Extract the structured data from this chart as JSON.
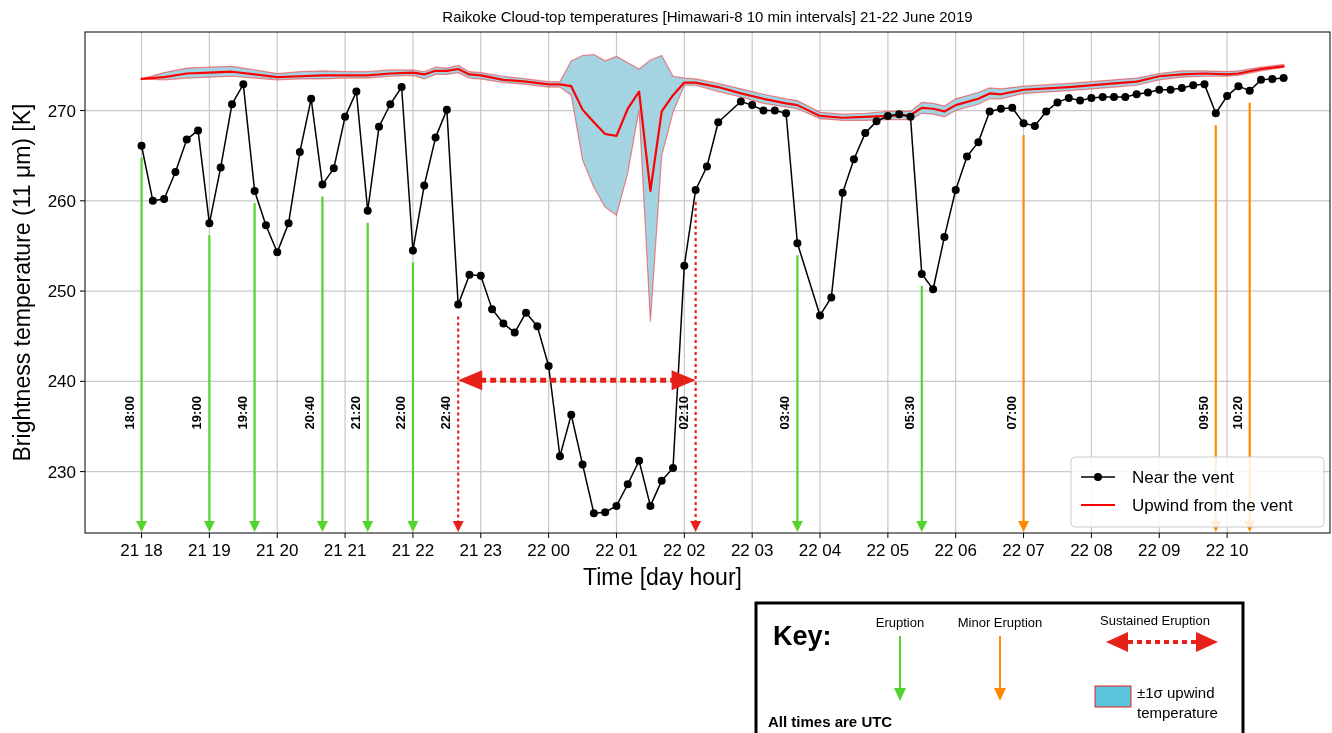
{
  "chart_data": {
    "type": "line",
    "title": "Raikoke Cloud-top temperatures [Himawari-8 10 min intervals] 21-22 June 2019",
    "xlabel": "Time [day hour]",
    "ylabel": "Brightness temperature (11 μm) [K]",
    "xlim": [
      "2019-06-21T17:10",
      "2019-06-22T11:31"
    ],
    "ylim": [
      223.2,
      278.7
    ],
    "xticks": [
      {
        "value": "2019-06-21T18:00",
        "label": "21 18"
      },
      {
        "value": "2019-06-21T19:00",
        "label": "21 19"
      },
      {
        "value": "2019-06-21T20:00",
        "label": "21 20"
      },
      {
        "value": "2019-06-21T21:00",
        "label": "21 21"
      },
      {
        "value": "2019-06-21T22:00",
        "label": "21 22"
      },
      {
        "value": "2019-06-21T23:00",
        "label": "21 23"
      },
      {
        "value": "2019-06-22T00:00",
        "label": "22 00"
      },
      {
        "value": "2019-06-22T01:00",
        "label": "22 01"
      },
      {
        "value": "2019-06-22T02:00",
        "label": "22 02"
      },
      {
        "value": "2019-06-22T03:00",
        "label": "22 03"
      },
      {
        "value": "2019-06-22T04:00",
        "label": "22 04"
      },
      {
        "value": "2019-06-22T05:00",
        "label": "22 05"
      },
      {
        "value": "2019-06-22T06:00",
        "label": "22 06"
      },
      {
        "value": "2019-06-22T07:00",
        "label": "22 07"
      },
      {
        "value": "2019-06-22T08:00",
        "label": "22 08"
      },
      {
        "value": "2019-06-22T09:00",
        "label": "22 09"
      },
      {
        "value": "2019-06-22T10:00",
        "label": "22 10"
      }
    ],
    "yticks": [
      230,
      240,
      250,
      260,
      270
    ],
    "grid": true,
    "legend": "bottom right",
    "line_style": "solid",
    "series": [
      {
        "name": "Near the vent",
        "color": "#000000",
        "marker": "circle",
        "x": [
          "2019-06-21T18:00",
          "2019-06-21T18:10",
          "2019-06-21T18:20",
          "2019-06-21T18:30",
          "2019-06-21T18:40",
          "2019-06-21T18:50",
          "2019-06-21T19:00",
          "2019-06-21T19:10",
          "2019-06-21T19:20",
          "2019-06-21T19:30",
          "2019-06-21T19:40",
          "2019-06-21T19:50",
          "2019-06-21T20:00",
          "2019-06-21T20:10",
          "2019-06-21T20:20",
          "2019-06-21T20:30",
          "2019-06-21T20:40",
          "2019-06-21T20:50",
          "2019-06-21T21:00",
          "2019-06-21T21:10",
          "2019-06-21T21:20",
          "2019-06-21T21:30",
          "2019-06-21T21:40",
          "2019-06-21T21:50",
          "2019-06-21T22:00",
          "2019-06-21T22:10",
          "2019-06-21T22:20",
          "2019-06-21T22:30",
          "2019-06-21T22:40",
          "2019-06-21T22:50",
          "2019-06-21T23:00",
          "2019-06-21T23:10",
          "2019-06-21T23:20",
          "2019-06-21T23:30",
          "2019-06-21T23:40",
          "2019-06-21T23:50",
          "2019-06-22T00:00",
          "2019-06-22T00:10",
          "2019-06-22T00:20",
          "2019-06-22T00:30",
          "2019-06-22T00:40",
          "2019-06-22T00:50",
          "2019-06-22T01:00",
          "2019-06-22T01:10",
          "2019-06-22T01:20",
          "2019-06-22T01:30",
          "2019-06-22T01:40",
          "2019-06-22T01:50",
          "2019-06-22T02:00",
          "2019-06-22T02:10",
          "2019-06-22T02:20",
          "2019-06-22T02:30",
          "2019-06-22T02:50",
          "2019-06-22T03:00",
          "2019-06-22T03:10",
          "2019-06-22T03:20",
          "2019-06-22T03:30",
          "2019-06-22T03:40",
          "2019-06-22T04:00",
          "2019-06-22T04:10",
          "2019-06-22T04:20",
          "2019-06-22T04:30",
          "2019-06-22T04:40",
          "2019-06-22T04:50",
          "2019-06-22T05:00",
          "2019-06-22T05:10",
          "2019-06-22T05:20",
          "2019-06-22T05:30",
          "2019-06-22T05:40",
          "2019-06-22T05:50",
          "2019-06-22T06:00",
          "2019-06-22T06:10",
          "2019-06-22T06:20",
          "2019-06-22T06:30",
          "2019-06-22T06:40",
          "2019-06-22T06:50",
          "2019-06-22T07:00",
          "2019-06-22T07:10",
          "2019-06-22T07:20",
          "2019-06-22T07:30",
          "2019-06-22T07:40",
          "2019-06-22T07:50",
          "2019-06-22T08:00",
          "2019-06-22T08:10",
          "2019-06-22T08:20",
          "2019-06-22T08:30",
          "2019-06-22T08:40",
          "2019-06-22T08:50",
          "2019-06-22T09:00",
          "2019-06-22T09:10",
          "2019-06-22T09:20",
          "2019-06-22T09:30",
          "2019-06-22T09:40",
          "2019-06-22T09:50",
          "2019-06-22T10:00",
          "2019-06-22T10:10",
          "2019-06-22T10:20",
          "2019-06-22T10:30",
          "2019-06-22T10:40",
          "2019-06-22T10:50"
        ],
        "values": [
          266.1,
          260.0,
          260.2,
          263.2,
          266.8,
          267.8,
          257.5,
          263.7,
          270.7,
          272.9,
          261.1,
          257.3,
          254.3,
          257.5,
          265.4,
          271.3,
          261.8,
          263.6,
          269.3,
          272.1,
          258.9,
          268.2,
          270.7,
          272.6,
          254.5,
          261.7,
          267.0,
          270.1,
          248.5,
          251.8,
          251.7,
          248.0,
          246.4,
          245.4,
          247.6,
          246.1,
          241.7,
          231.7,
          236.3,
          230.8,
          225.4,
          225.5,
          226.2,
          228.6,
          231.2,
          226.2,
          229.0,
          230.4,
          252.8,
          261.2,
          263.8,
          268.7,
          271.0,
          270.6,
          270.0,
          270.0,
          269.7,
          255.3,
          247.3,
          249.3,
          260.9,
          264.6,
          267.5,
          268.8,
          269.4,
          269.6,
          269.3,
          251.9,
          250.2,
          256.0,
          261.2,
          264.9,
          266.5,
          269.9,
          270.2,
          270.3,
          268.6,
          268.3,
          269.9,
          270.9,
          271.4,
          271.1,
          271.4,
          271.5,
          271.5,
          271.5,
          271.8,
          272.0,
          272.3,
          272.3,
          272.5,
          272.8,
          272.9,
          269.7,
          271.6,
          272.7,
          272.2,
          273.4,
          273.5,
          273.6
        ]
      },
      {
        "name": "Upwind from the vent",
        "color": "#ff0000",
        "marker": "none",
        "x": [
          "2019-06-21T18:00",
          "2019-06-21T18:20",
          "2019-06-21T18:40",
          "2019-06-21T19:00",
          "2019-06-21T19:20",
          "2019-06-21T19:40",
          "2019-06-21T20:00",
          "2019-06-21T20:20",
          "2019-06-21T20:40",
          "2019-06-21T21:00",
          "2019-06-21T21:20",
          "2019-06-21T21:40",
          "2019-06-21T22:00",
          "2019-06-21T22:10",
          "2019-06-21T22:20",
          "2019-06-21T22:30",
          "2019-06-21T22:40",
          "2019-06-21T22:50",
          "2019-06-21T23:00",
          "2019-06-21T23:20",
          "2019-06-21T23:40",
          "2019-06-22T00:00",
          "2019-06-22T00:10",
          "2019-06-22T00:20",
          "2019-06-22T00:30",
          "2019-06-22T00:40",
          "2019-06-22T00:50",
          "2019-06-22T01:00",
          "2019-06-22T01:10",
          "2019-06-22T01:20",
          "2019-06-22T01:30",
          "2019-06-22T01:40",
          "2019-06-22T01:50",
          "2019-06-22T02:00",
          "2019-06-22T02:10",
          "2019-06-22T02:30",
          "2019-06-22T02:50",
          "2019-06-22T03:10",
          "2019-06-22T03:30",
          "2019-06-22T03:40",
          "2019-06-22T04:00",
          "2019-06-22T04:20",
          "2019-06-22T04:40",
          "2019-06-22T05:00",
          "2019-06-22T05:20",
          "2019-06-22T05:30",
          "2019-06-22T05:40",
          "2019-06-22T05:50",
          "2019-06-22T06:00",
          "2019-06-22T06:20",
          "2019-06-22T06:30",
          "2019-06-22T06:40",
          "2019-06-22T07:00",
          "2019-06-22T07:40",
          "2019-06-22T08:20",
          "2019-06-22T08:40",
          "2019-06-22T09:00",
          "2019-06-22T09:20",
          "2019-06-22T09:40",
          "2019-06-22T10:00",
          "2019-06-22T10:10",
          "2019-06-22T10:30",
          "2019-06-22T10:50"
        ],
        "values": [
          273.5,
          273.7,
          274.1,
          274.2,
          274.3,
          274.0,
          273.7,
          273.8,
          273.9,
          273.9,
          273.9,
          274.1,
          274.2,
          274.0,
          274.4,
          274.4,
          274.6,
          274.0,
          273.9,
          273.4,
          273.2,
          272.9,
          272.9,
          272.7,
          270.1,
          268.7,
          267.4,
          267.2,
          270.2,
          272.1,
          261.1,
          269.9,
          271.7,
          273.1,
          273.1,
          272.6,
          271.9,
          271.3,
          270.8,
          270.6,
          269.4,
          269.2,
          269.3,
          269.4,
          269.5,
          270.3,
          270.2,
          269.9,
          270.6,
          271.3,
          271.9,
          271.8,
          272.3,
          272.6,
          273.0,
          273.2,
          273.8,
          274.0,
          274.1,
          274.0,
          274.1,
          274.6,
          274.9
        ],
        "lower": [
          273.5,
          273.4,
          273.6,
          273.7,
          273.8,
          273.6,
          273.4,
          273.5,
          273.5,
          273.6,
          273.6,
          273.8,
          273.9,
          273.5,
          274.0,
          274.0,
          274.2,
          273.6,
          273.5,
          273.1,
          272.9,
          272.6,
          272.6,
          271.7,
          264.5,
          261.5,
          259.3,
          258.4,
          263.1,
          270.1,
          246.6,
          265.0,
          269.8,
          272.8,
          272.8,
          272.1,
          271.5,
          270.8,
          270.4,
          270.2,
          269.1,
          268.9,
          268.9,
          269.0,
          269.0,
          269.7,
          269.6,
          269.3,
          270.0,
          270.7,
          271.3,
          271.3,
          271.9,
          272.2,
          272.6,
          272.8,
          273.4,
          273.7,
          273.8,
          273.8,
          273.9,
          274.4,
          274.8
        ],
        "upper": [
          273.5,
          274.2,
          274.7,
          274.8,
          274.9,
          274.5,
          274.1,
          274.3,
          274.4,
          274.3,
          274.3,
          274.5,
          274.5,
          274.3,
          274.8,
          274.7,
          275.0,
          274.3,
          274.2,
          273.8,
          273.5,
          273.2,
          273.2,
          275.5,
          276.1,
          276.2,
          275.5,
          276.0,
          275.3,
          274.6,
          275.6,
          276.1,
          273.8,
          273.6,
          273.5,
          273.0,
          272.4,
          271.8,
          271.3,
          271.1,
          269.8,
          269.6,
          269.7,
          269.9,
          269.9,
          270.9,
          270.8,
          270.5,
          271.3,
          272.0,
          272.5,
          272.4,
          272.7,
          273.0,
          273.4,
          273.6,
          274.1,
          274.4,
          274.4,
          274.3,
          274.4,
          274.8,
          275.1
        ]
      }
    ],
    "ref_lines": [
      {
        "axis": "x",
        "value": "2019-06-21T18:00",
        "label": "18:00",
        "color": "#55d430",
        "line_style": "solid"
      },
      {
        "axis": "x",
        "value": "2019-06-21T19:00",
        "label": "19:00",
        "color": "#55d430",
        "line_style": "solid"
      },
      {
        "axis": "x",
        "value": "2019-06-21T19:40",
        "label": "19:40",
        "color": "#55d430",
        "line_style": "solid"
      },
      {
        "axis": "x",
        "value": "2019-06-21T20:40",
        "label": "20:40",
        "color": "#55d430",
        "line_style": "solid"
      },
      {
        "axis": "x",
        "value": "2019-06-21T21:20",
        "label": "21:20",
        "color": "#55d430",
        "line_style": "solid"
      },
      {
        "axis": "x",
        "value": "2019-06-21T22:00",
        "label": "22:00",
        "color": "#55d430",
        "line_style": "solid"
      },
      {
        "axis": "x",
        "value": "2019-06-21T22:40",
        "label": "22:40",
        "color": "#e8201a",
        "line_style": "dotted"
      },
      {
        "axis": "x",
        "value": "2019-06-22T02:10",
        "label": "02:10",
        "color": "#e8201a",
        "line_style": "dotted"
      },
      {
        "axis": "x",
        "value": "2019-06-22T03:40",
        "label": "03:40",
        "color": "#55d430",
        "line_style": "solid"
      },
      {
        "axis": "x",
        "value": "2019-06-22T05:30",
        "label": "05:30",
        "color": "#55d430",
        "line_style": "solid"
      },
      {
        "axis": "x",
        "value": "2019-06-22T07:00",
        "label": "07:00",
        "color": "#ff8a00",
        "line_style": "solid"
      },
      {
        "axis": "x",
        "value": "2019-06-22T09:50",
        "label": "09:50",
        "color": "#ff8a00",
        "line_style": "solid"
      },
      {
        "axis": "x",
        "value": "2019-06-22T10:20",
        "label": "10:20",
        "color": "#ff8a00",
        "line_style": "solid"
      }
    ],
    "annotations": [
      "Key:",
      "Eruption",
      "Minor Eruption",
      "Sustained Eruption",
      "±1σ upwind temperature",
      "All times are UTC"
    ]
  }
}
